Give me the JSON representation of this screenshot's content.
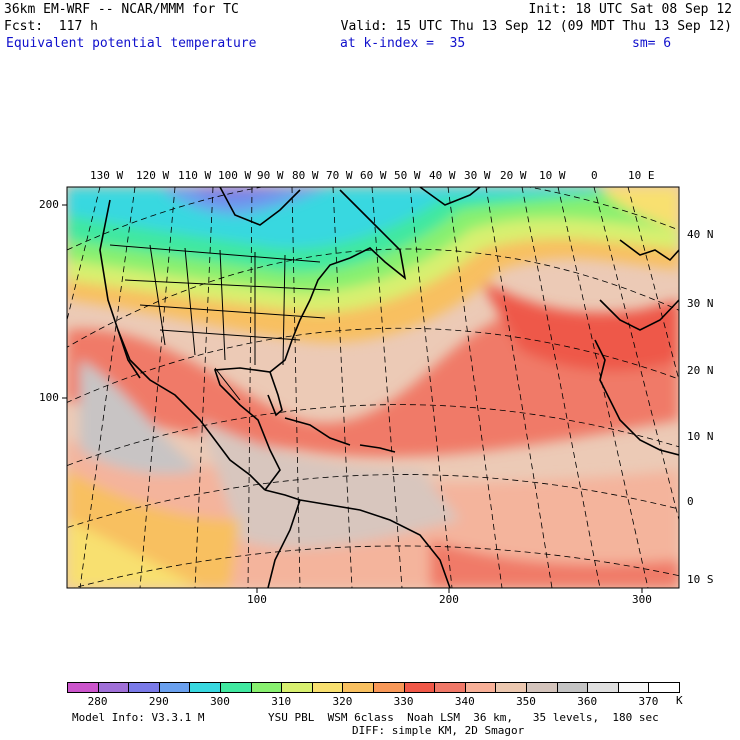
{
  "header": {
    "line1_left": "36km EM-WRF -- NCAR/MMM for TC",
    "line1_right": "Init: 18 UTC Sat 08 Sep 12",
    "line2_left": "Fcst:  117 h",
    "line2_right": "Valid: 15 UTC Thu 13 Sep 12 (09 MDT Thu 13 Sep 12)",
    "field_name": "Equivalent potential temperature",
    "level": "at k-index =  35",
    "smoothing": "sm= 6"
  },
  "top_longitudes": [
    "130 W",
    "120 W",
    "110 W",
    "100 W",
    "90 W",
    "80 W",
    "70 W",
    "60 W",
    "50 W",
    "40 W",
    "30 W",
    "20 W",
    "10 W",
    "0",
    "10 E"
  ],
  "right_latitudes": [
    "40 N",
    "30 N",
    "20 N",
    "10 N",
    "0",
    "10 S"
  ],
  "left_grid_labels": [
    "200",
    "100"
  ],
  "bottom_grid_labels": [
    "100",
    "200",
    "300"
  ],
  "colorbar": {
    "colors": [
      "#cc55cc",
      "#a070d8",
      "#7a7ae8",
      "#6aa0ee",
      "#38d8e0",
      "#40e8a0",
      "#88f070",
      "#d8f070",
      "#f8e070",
      "#f8c060",
      "#f89858",
      "#f05848",
      "#f07868",
      "#f8b098",
      "#ecc8b0",
      "#d4c4bc",
      "#c4c4c4",
      "#e0e0e0",
      "#f8f8f8",
      "#ffffff"
    ],
    "tick_labels": [
      "280",
      "290",
      "300",
      "310",
      "320",
      "330",
      "340",
      "350",
      "360",
      "370"
    ],
    "unit": "K"
  },
  "footer": {
    "model_info": "Model Info: V3.3.1 M",
    "physics": "YSU PBL  WSM 6class  Noah LSM  36 km,   35 levels,  180 sec",
    "diffusion": "DIFF: simple KM, 2D Smagor"
  }
}
